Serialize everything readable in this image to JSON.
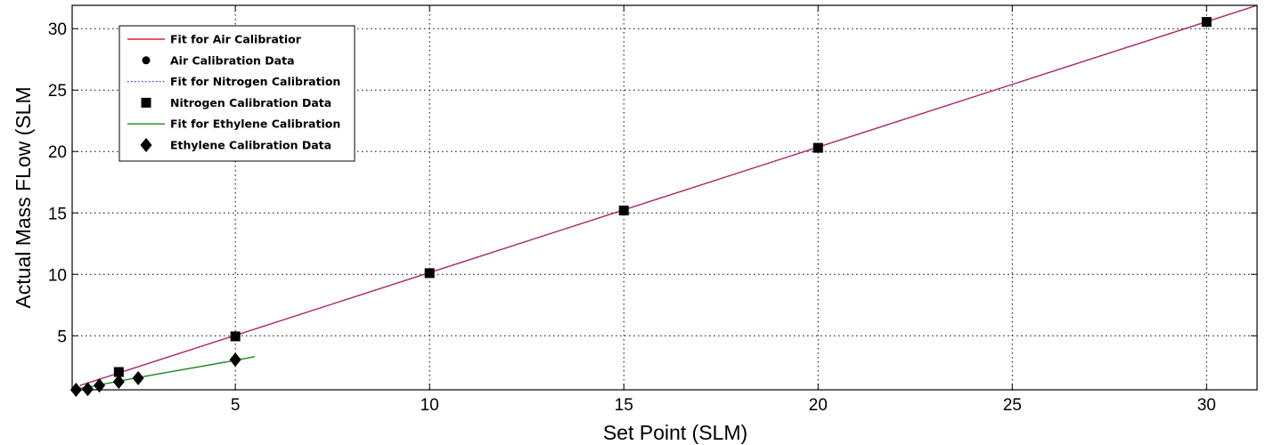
{
  "chart_data": {
    "type": "scatter",
    "xlabel": "Set Point (SLM)",
    "ylabel": "Actual Mass FLow (SLM",
    "xlim": [
      0.8,
      31.3
    ],
    "ylim": [
      0.6,
      31.9
    ],
    "xticks": [
      "5",
      "10",
      "15",
      "20",
      "25",
      "30"
    ],
    "yticks": [
      "5",
      "10",
      "15",
      "20",
      "25",
      "30"
    ],
    "grid": true,
    "legend_position": "top-left",
    "series": [
      {
        "name": "Fit for Air Calibratior",
        "kind": "line",
        "style": "solid",
        "color": "#e0202c",
        "x": [
          1,
          31.3
        ],
        "y": [
          0.95,
          31.9
        ]
      },
      {
        "name": "Air Calibration Data",
        "kind": "marker",
        "marker": "circle",
        "color": "#000000",
        "x": [
          2,
          5,
          10,
          15,
          20,
          30
        ],
        "y": [
          1.95,
          4.95,
          10.05,
          15.15,
          20.25,
          30.6
        ]
      },
      {
        "name": "Fit for Nitrogen Calibration",
        "kind": "line",
        "style": "dotted",
        "color": "#3a3aff",
        "x": [
          1,
          31.3
        ],
        "y": [
          0.95,
          31.9
        ]
      },
      {
        "name": "Nitrogen Calibration Data",
        "kind": "marker",
        "marker": "square",
        "color": "#000000",
        "x": [
          2,
          5,
          10,
          15,
          20,
          30
        ],
        "y": [
          2.05,
          4.95,
          10.1,
          15.2,
          20.3,
          30.55
        ]
      },
      {
        "name": "Fit for Ethylene Calibration",
        "kind": "line",
        "style": "solid",
        "color": "#1a8a1a",
        "x": [
          0.9,
          1.2,
          1.5,
          2,
          2.5,
          5,
          5.5
        ],
        "y": [
          0.7,
          0.8,
          1.0,
          1.3,
          1.6,
          3.0,
          3.3
        ]
      },
      {
        "name": "Ethylene Calibration Data",
        "kind": "marker",
        "marker": "diamond",
        "color": "#000000",
        "x": [
          0.9,
          1.2,
          1.5,
          2.0,
          2.5,
          5.0
        ],
        "y": [
          0.6,
          0.65,
          0.95,
          1.25,
          1.55,
          3.05
        ]
      }
    ]
  }
}
